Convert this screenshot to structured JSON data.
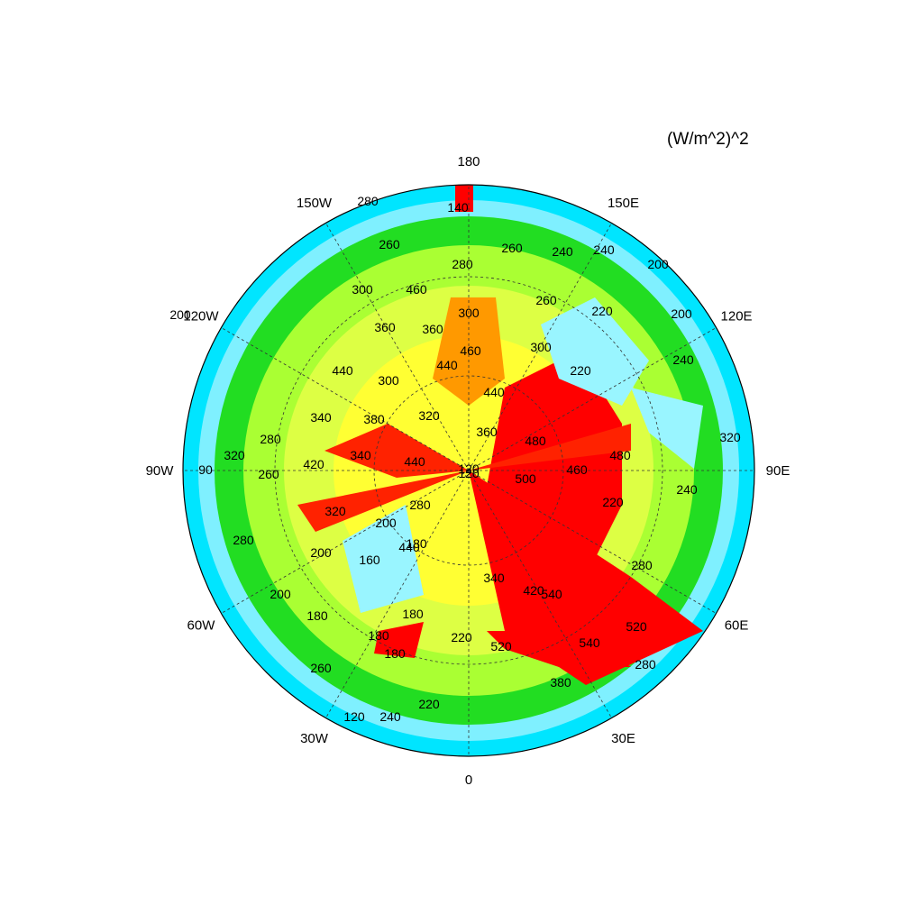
{
  "units_label": "(W/m^2)^2",
  "projection": "north-polar-stereographic",
  "color_scale": [
    "#00e5ff",
    "#7ff0ff",
    "#00dd00",
    "#aaff00",
    "#ffff00",
    "#ff9900",
    "#ff0000"
  ],
  "value_range": [
    120,
    540
  ],
  "longitude_labels": [
    {
      "text": "180",
      "lon": 180
    },
    {
      "text": "150E",
      "lon": 150
    },
    {
      "text": "120E",
      "lon": 120
    },
    {
      "text": "90E",
      "lon": 90
    },
    {
      "text": "60E",
      "lon": 60
    },
    {
      "text": "30E",
      "lon": 30
    },
    {
      "text": "0",
      "lon": 0
    },
    {
      "text": "30W",
      "lon": -30
    },
    {
      "text": "60W",
      "lon": -60
    },
    {
      "text": "90W",
      "lon": -90
    },
    {
      "text": "120W",
      "lon": -120
    },
    {
      "text": "150W",
      "lon": -150
    }
  ],
  "contour_labels": [
    "120",
    "140",
    "280",
    "260",
    "260",
    "240",
    "240",
    "200",
    "280",
    "300",
    "460",
    "300",
    "260",
    "220",
    "460",
    "300",
    "240",
    "360",
    "360",
    "220",
    "200",
    "440",
    "440",
    "300",
    "320",
    "360",
    "480",
    "480",
    "460",
    "320",
    "280",
    "340",
    "380",
    "440",
    "420",
    "500",
    "240",
    "90",
    "320",
    "260",
    "340",
    "120",
    "440",
    "320",
    "280",
    "200",
    "220",
    "180",
    "440",
    "340",
    "420",
    "280",
    "540",
    "200",
    "160",
    "200",
    "200",
    "180",
    "520",
    "180",
    "220",
    "540",
    "380",
    "260",
    "280",
    "520",
    "120",
    "240",
    "220",
    "180",
    "280",
    "180"
  ]
}
